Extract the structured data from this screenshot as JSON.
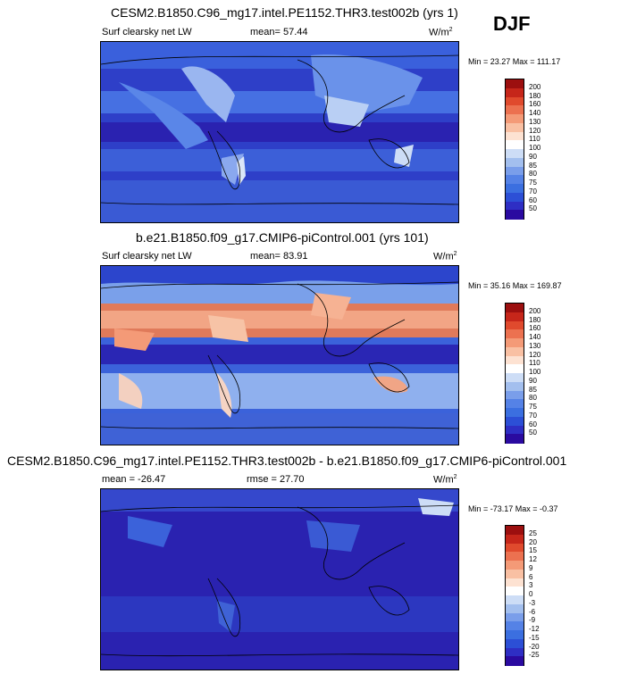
{
  "season": "DJF",
  "colors": {
    "colorbar_top": [
      "#2a0aa0",
      "#2e2ec4",
      "#2c4fd6",
      "#3b6fe0",
      "#5582e6",
      "#7a9eea",
      "#a3bfee",
      "#cdddf6",
      "#ffffff",
      "#fde2d2",
      "#f9c0a3",
      "#f49a77",
      "#ec7150",
      "#e04a2d",
      "#c6261a",
      "#9c0f0f"
    ],
    "colorbar_diff": [
      "#2a0aa0",
      "#2e2ec4",
      "#2c4fd6",
      "#3b6fe0",
      "#5582e6",
      "#7a9eea",
      "#a3bfee",
      "#cdddf6",
      "#ffffff",
      "#fde2d2",
      "#f9c0a3",
      "#f49a77",
      "#ec7150",
      "#e04a2d",
      "#c6261a",
      "#9c0f0f"
    ]
  },
  "panels": [
    {
      "title": "CESM2.B1850.C96_mg17.intel.PE1152.THR3.test002b (yrs 1)",
      "variable": "Surf clearsky net LW",
      "mean": "mean=  57.44",
      "units": "W/m",
      "units_sup": "2",
      "minmax": "Min =  23.27 Max = 111.17",
      "ticks": [
        "200",
        "180",
        "160",
        "140",
        "130",
        "120",
        "110",
        "100",
        "90",
        "85",
        "80",
        "75",
        "70",
        "60",
        "50"
      ]
    },
    {
      "title": "b.e21.B1850.f09_g17.CMIP6-piControl.001 (yrs 101)",
      "variable": "Surf clearsky net LW",
      "mean": "mean=  83.91",
      "units": "W/m",
      "units_sup": "2",
      "minmax": "Min =  35.16 Max = 169.87",
      "ticks": [
        "200",
        "180",
        "160",
        "140",
        "130",
        "120",
        "110",
        "100",
        "90",
        "85",
        "80",
        "75",
        "70",
        "60",
        "50"
      ]
    },
    {
      "title": "CESM2.B1850.C96_mg17.intel.PE1152.THR3.test002b - b.e21.B1850.f09_g17.CMIP6-piControl.001",
      "mean": "mean = -26.47",
      "rmse": "rmse =  27.70",
      "units": "W/m",
      "units_sup": "2",
      "minmax": "Min = -73.17 Max =  -0.37",
      "ticks": [
        "25",
        "20",
        "15",
        "12",
        "9",
        "6",
        "3",
        "0",
        "-3",
        "-6",
        "-9",
        "-12",
        "-15",
        "-20",
        "-25"
      ]
    }
  ]
}
